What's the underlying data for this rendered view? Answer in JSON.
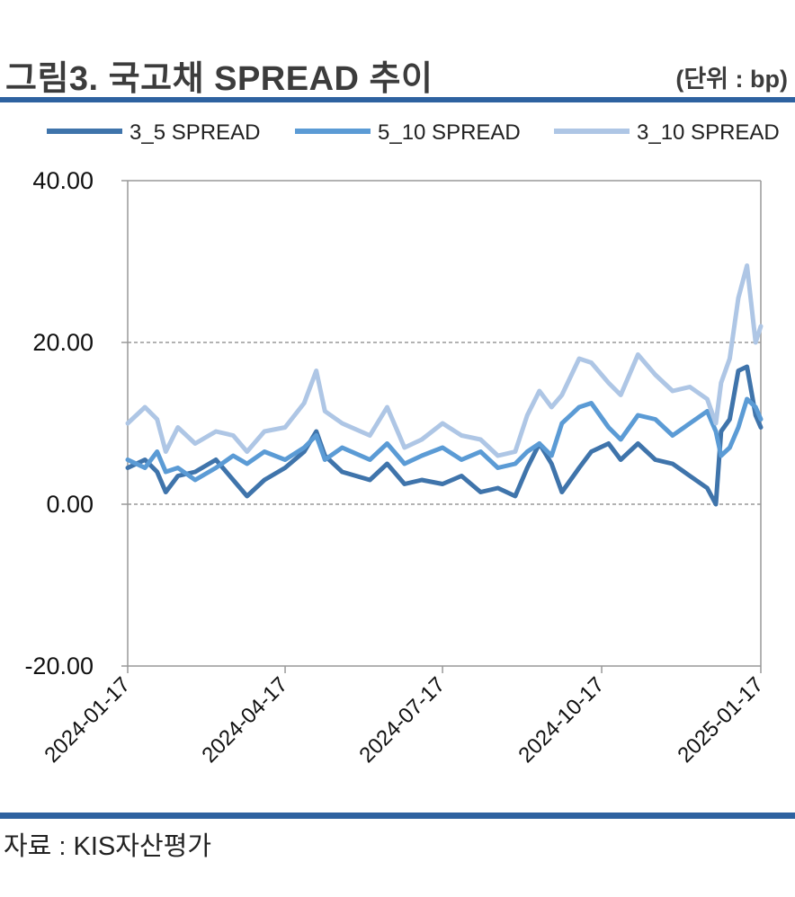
{
  "header": {
    "title": "그림3. 국고채 SPREAD 추이",
    "unit": "(단위 : bp)"
  },
  "footer": {
    "source": "자료 : KIS자산평가"
  },
  "colors": {
    "rule": "#2e62a0",
    "axis": "#999999",
    "grid": "#666666"
  },
  "chart_data": {
    "type": "line",
    "title": "",
    "xlabel": "",
    "ylabel": "",
    "ylim": [
      -20,
      40
    ],
    "yticks": [
      "40.00",
      "20.00",
      "0.00",
      "-20.00"
    ],
    "ytick_values": [
      40,
      20,
      0,
      -20
    ],
    "gridlines_at": [
      20,
      0
    ],
    "xticks": [
      "2024-01-17",
      "2024-04-17",
      "2024-07-17",
      "2024-10-17",
      "2025-01-17"
    ],
    "x_range": [
      "2024-01-17",
      "2025-01-17"
    ],
    "legend_position": "top",
    "series": [
      {
        "name": "3_5 SPREAD",
        "color": "#3f74ab",
        "points": [
          [
            "2024-01-17",
            4.5
          ],
          [
            "2024-01-27",
            5.5
          ],
          [
            "2024-02-03",
            4.0
          ],
          [
            "2024-02-08",
            1.5
          ],
          [
            "2024-02-15",
            3.5
          ],
          [
            "2024-02-25",
            4.0
          ],
          [
            "2024-03-08",
            5.5
          ],
          [
            "2024-03-18",
            3.0
          ],
          [
            "2024-03-26",
            1.0
          ],
          [
            "2024-04-05",
            3.0
          ],
          [
            "2024-04-17",
            4.5
          ],
          [
            "2024-04-28",
            6.5
          ],
          [
            "2024-05-05",
            9.0
          ],
          [
            "2024-05-10",
            6.0
          ],
          [
            "2024-05-20",
            4.0
          ],
          [
            "2024-06-05",
            3.0
          ],
          [
            "2024-06-15",
            5.0
          ],
          [
            "2024-06-25",
            2.5
          ],
          [
            "2024-07-05",
            3.0
          ],
          [
            "2024-07-17",
            2.5
          ],
          [
            "2024-07-28",
            3.5
          ],
          [
            "2024-08-08",
            1.5
          ],
          [
            "2024-08-18",
            2.0
          ],
          [
            "2024-08-28",
            1.0
          ],
          [
            "2024-09-04",
            4.5
          ],
          [
            "2024-09-11",
            7.5
          ],
          [
            "2024-09-18",
            5.0
          ],
          [
            "2024-09-24",
            1.5
          ],
          [
            "2024-10-04",
            4.5
          ],
          [
            "2024-10-11",
            6.5
          ],
          [
            "2024-10-21",
            7.5
          ],
          [
            "2024-10-28",
            5.5
          ],
          [
            "2024-11-07",
            7.5
          ],
          [
            "2024-11-17",
            5.5
          ],
          [
            "2024-11-27",
            5.0
          ],
          [
            "2024-12-07",
            3.5
          ],
          [
            "2024-12-17",
            2.0
          ],
          [
            "2024-12-22",
            0.0
          ],
          [
            "2024-12-25",
            9.0
          ],
          [
            "2024-12-30",
            10.5
          ],
          [
            "2025-01-04",
            16.5
          ],
          [
            "2025-01-09",
            17.0
          ],
          [
            "2025-01-14",
            11.0
          ],
          [
            "2025-01-17",
            9.5
          ]
        ]
      },
      {
        "name": "5_10 SPREAD",
        "color": "#5b9bd5",
        "points": [
          [
            "2024-01-17",
            5.5
          ],
          [
            "2024-01-27",
            4.5
          ],
          [
            "2024-02-03",
            6.5
          ],
          [
            "2024-02-08",
            4.0
          ],
          [
            "2024-02-15",
            4.5
          ],
          [
            "2024-02-25",
            3.0
          ],
          [
            "2024-03-08",
            4.5
          ],
          [
            "2024-03-18",
            6.0
          ],
          [
            "2024-03-26",
            5.0
          ],
          [
            "2024-04-05",
            6.5
          ],
          [
            "2024-04-17",
            5.5
          ],
          [
            "2024-04-28",
            7.0
          ],
          [
            "2024-05-05",
            8.5
          ],
          [
            "2024-05-10",
            5.5
          ],
          [
            "2024-05-20",
            7.0
          ],
          [
            "2024-06-05",
            5.5
          ],
          [
            "2024-06-15",
            7.5
          ],
          [
            "2024-06-25",
            5.0
          ],
          [
            "2024-07-05",
            6.0
          ],
          [
            "2024-07-17",
            7.0
          ],
          [
            "2024-07-28",
            5.5
          ],
          [
            "2024-08-08",
            6.5
          ],
          [
            "2024-08-18",
            4.5
          ],
          [
            "2024-08-28",
            5.0
          ],
          [
            "2024-09-04",
            6.5
          ],
          [
            "2024-09-11",
            7.5
          ],
          [
            "2024-09-18",
            6.0
          ],
          [
            "2024-09-24",
            10.0
          ],
          [
            "2024-10-04",
            12.0
          ],
          [
            "2024-10-11",
            12.5
          ],
          [
            "2024-10-21",
            9.5
          ],
          [
            "2024-10-28",
            8.0
          ],
          [
            "2024-11-07",
            11.0
          ],
          [
            "2024-11-17",
            10.5
          ],
          [
            "2024-11-27",
            8.5
          ],
          [
            "2024-12-07",
            10.0
          ],
          [
            "2024-12-17",
            11.5
          ],
          [
            "2024-12-22",
            9.0
          ],
          [
            "2024-12-25",
            6.0
          ],
          [
            "2024-12-30",
            7.0
          ],
          [
            "2025-01-04",
            9.5
          ],
          [
            "2025-01-09",
            13.0
          ],
          [
            "2025-01-14",
            12.0
          ],
          [
            "2025-01-17",
            10.5
          ]
        ]
      },
      {
        "name": "3_10 SPREAD",
        "color": "#aec6e5",
        "points": [
          [
            "2024-01-17",
            10.0
          ],
          [
            "2024-01-27",
            12.0
          ],
          [
            "2024-02-03",
            10.5
          ],
          [
            "2024-02-08",
            6.5
          ],
          [
            "2024-02-15",
            9.5
          ],
          [
            "2024-02-25",
            7.5
          ],
          [
            "2024-03-08",
            9.0
          ],
          [
            "2024-03-18",
            8.5
          ],
          [
            "2024-03-26",
            6.5
          ],
          [
            "2024-04-05",
            9.0
          ],
          [
            "2024-04-17",
            9.5
          ],
          [
            "2024-04-28",
            12.5
          ],
          [
            "2024-05-05",
            16.5
          ],
          [
            "2024-05-10",
            11.5
          ],
          [
            "2024-05-20",
            10.0
          ],
          [
            "2024-06-05",
            8.5
          ],
          [
            "2024-06-15",
            12.0
          ],
          [
            "2024-06-25",
            7.0
          ],
          [
            "2024-07-05",
            8.0
          ],
          [
            "2024-07-17",
            10.0
          ],
          [
            "2024-07-28",
            8.5
          ],
          [
            "2024-08-08",
            8.0
          ],
          [
            "2024-08-18",
            6.0
          ],
          [
            "2024-08-28",
            6.5
          ],
          [
            "2024-09-04",
            11.0
          ],
          [
            "2024-09-11",
            14.0
          ],
          [
            "2024-09-18",
            12.0
          ],
          [
            "2024-09-24",
            13.5
          ],
          [
            "2024-10-04",
            18.0
          ],
          [
            "2024-10-11",
            17.5
          ],
          [
            "2024-10-21",
            15.0
          ],
          [
            "2024-10-28",
            13.5
          ],
          [
            "2024-11-07",
            18.5
          ],
          [
            "2024-11-17",
            16.0
          ],
          [
            "2024-11-27",
            14.0
          ],
          [
            "2024-12-07",
            14.5
          ],
          [
            "2024-12-17",
            13.0
          ],
          [
            "2024-12-22",
            10.0
          ],
          [
            "2024-12-25",
            15.0
          ],
          [
            "2024-12-30",
            18.0
          ],
          [
            "2025-01-04",
            25.5
          ],
          [
            "2025-01-09",
            29.5
          ],
          [
            "2025-01-14",
            20.0
          ],
          [
            "2025-01-17",
            22.0
          ]
        ]
      }
    ]
  }
}
